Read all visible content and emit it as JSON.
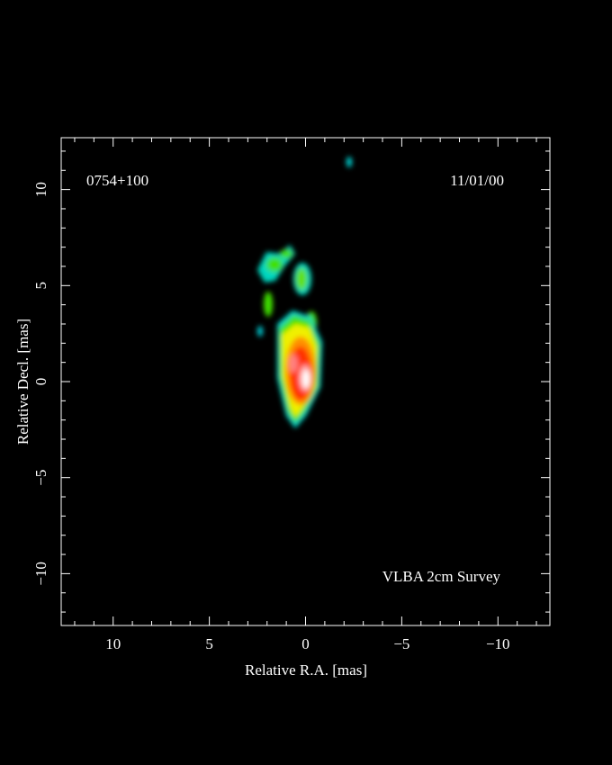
{
  "chart_data": {
    "type": "image",
    "source_label": "0754+100",
    "date_label": "11/01/00",
    "survey_label": "VLBA 2cm Survey",
    "xlabel": "Relative R.A. [mas]",
    "ylabel": "Relative Decl. [mas]",
    "xlim": [
      12.7,
      -12.7
    ],
    "ylim": [
      -12.7,
      12.7
    ],
    "xticks": [
      10,
      5,
      0,
      {
        "value": -5,
        "label": "−5"
      },
      {
        "value": -10,
        "label": "−10"
      }
    ],
    "yticks": [
      {
        "value": -10,
        "label": "−10"
      },
      {
        "value": -5,
        "label": "−5"
      },
      0,
      5,
      10
    ],
    "xminorticks": [
      12,
      11,
      9,
      8,
      7,
      6,
      4,
      3,
      2,
      1,
      -1,
      -2,
      -3,
      -4,
      -6,
      -7,
      -8,
      -9,
      -11,
      -12
    ],
    "yminorticks": [
      -12,
      -11,
      -9,
      -8,
      -7,
      -6,
      -4,
      -3,
      -2,
      -1,
      1,
      2,
      3,
      4,
      6,
      7,
      8,
      9,
      11,
      12
    ]
  }
}
